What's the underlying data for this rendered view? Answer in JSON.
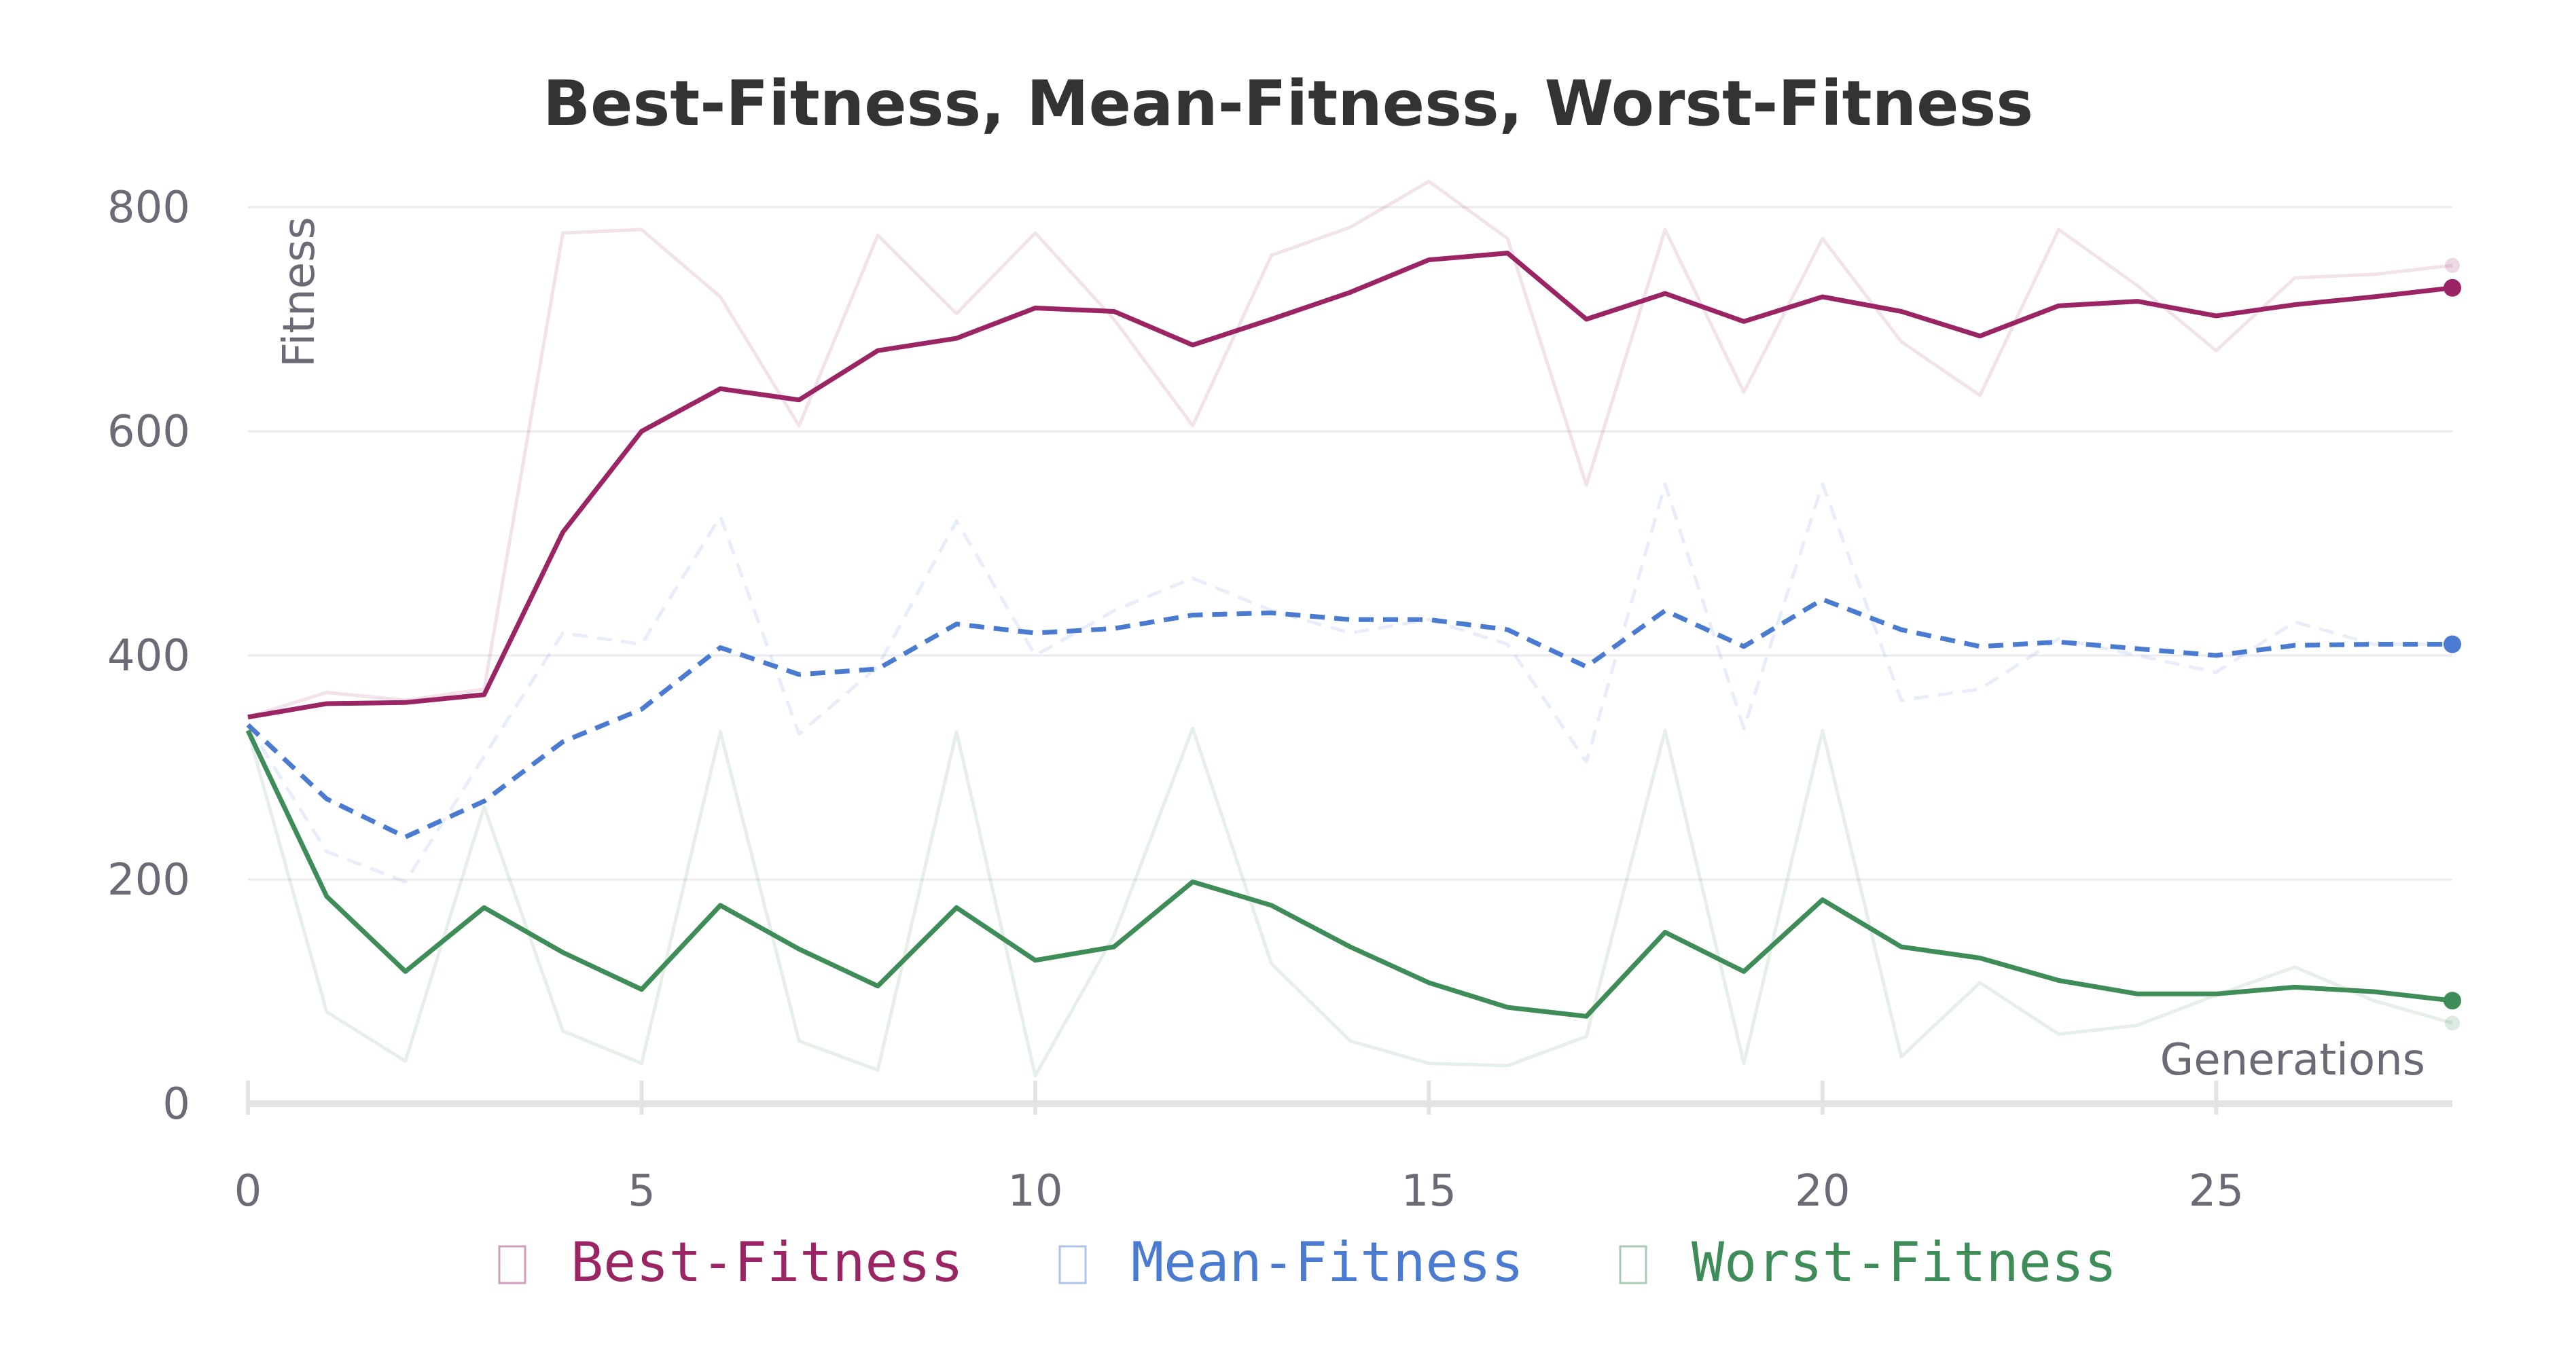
{
  "chart_data": {
    "type": "line",
    "title": "Best-Fitness, Mean-Fitness, Worst-Fitness",
    "xlabel": "Generations",
    "ylabel": "Fitness",
    "xlim": [
      0,
      28
    ],
    "ylim": [
      0,
      800
    ],
    "x_ticks": [
      0,
      5,
      10,
      15,
      20,
      25
    ],
    "y_ticks": [
      0,
      200,
      400,
      600,
      800
    ],
    "grid": true,
    "legend_position": "bottom",
    "x": [
      0,
      1,
      2,
      3,
      4,
      5,
      6,
      7,
      8,
      9,
      10,
      11,
      12,
      13,
      14,
      15,
      16,
      17,
      18,
      19,
      20,
      21,
      22,
      23,
      24,
      25,
      26,
      27,
      28
    ],
    "series": [
      {
        "name": "Best-Fitness",
        "color": "#9b2564",
        "style": "solid",
        "values": [
          345,
          357,
          358,
          365,
          510,
          600,
          638,
          628,
          672,
          683,
          710,
          707,
          677,
          700,
          724,
          753,
          759,
          700,
          723,
          698,
          720,
          707,
          685,
          712,
          716,
          703,
          713,
          720,
          728
        ],
        "raw_values": [
          345,
          367,
          360,
          370,
          777,
          780,
          720,
          605,
          775,
          705,
          777,
          700,
          605,
          757,
          782,
          823,
          772,
          552,
          780,
          635,
          772,
          680,
          632,
          780,
          730,
          672,
          737,
          740,
          748
        ]
      },
      {
        "name": "Mean-Fitness",
        "color": "#4a7bd0",
        "style": "dashed",
        "values": [
          338,
          272,
          238,
          270,
          323,
          352,
          407,
          383,
          388,
          428,
          420,
          424,
          436,
          438,
          432,
          432,
          423,
          390,
          440,
          408,
          450,
          423,
          408,
          412,
          406,
          400,
          409,
          410,
          410
        ],
        "raw_values": [
          338,
          225,
          198,
          310,
          420,
          410,
          524,
          330,
          390,
          520,
          400,
          440,
          469,
          440,
          420,
          432,
          410,
          305,
          553,
          335,
          553,
          360,
          370,
          415,
          400,
          385,
          430,
          410,
          410
        ]
      },
      {
        "name": "Worst-Fitness",
        "color": "#3e8c57",
        "style": "solid",
        "values": [
          333,
          185,
          118,
          175,
          135,
          102,
          177,
          138,
          105,
          175,
          128,
          140,
          198,
          177,
          140,
          108,
          86,
          78,
          153,
          118,
          182,
          140,
          130,
          110,
          98,
          98,
          104,
          100,
          92
        ],
        "raw_values": [
          333,
          82,
          38,
          265,
          65,
          36,
          332,
          56,
          30,
          332,
          25,
          150,
          335,
          125,
          56,
          36,
          34,
          60,
          333,
          36,
          333,
          42,
          108,
          62,
          70,
          97,
          122,
          92,
          72
        ]
      }
    ]
  }
}
